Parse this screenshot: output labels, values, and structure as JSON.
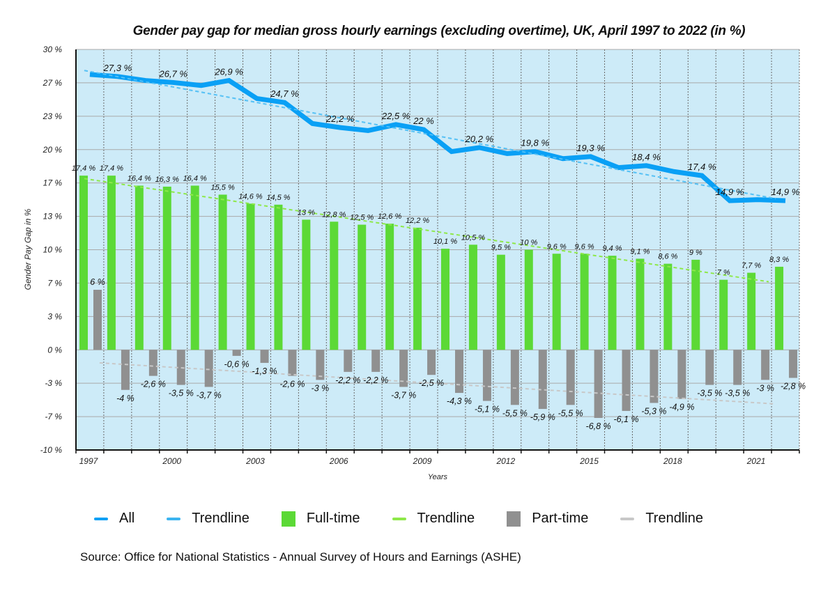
{
  "chart_data": {
    "type": "bar",
    "title": "Gender pay gap for median gross hourly earnings (excluding overtime), UK, April 1997 to 2022 (in %)",
    "xlabel": "Years",
    "ylabel": "Gender Pay Gap in %",
    "ylim": [
      -10,
      30
    ],
    "y_ticks": [
      30,
      26.67,
      23.33,
      20,
      16.67,
      13.33,
      10,
      6.67,
      3.33,
      0,
      -3.33,
      -6.67,
      -10
    ],
    "y_tick_labels": [
      "30 %",
      "27 %",
      "23 %",
      "20 %",
      "17 %",
      "13 %",
      "10 %",
      "7 %",
      "3 %",
      "0 %",
      "-3 %",
      "-7 %",
      "-10 %"
    ],
    "grid": true,
    "categories": [
      "1997",
      "1998",
      "1999",
      "2000",
      "2001",
      "2002",
      "2003",
      "2004",
      "2005",
      "2006",
      "2007",
      "2008",
      "2009",
      "2010",
      "2011",
      "2012",
      "2013",
      "2014",
      "2015",
      "2016",
      "2017",
      "2018",
      "2019",
      "2020",
      "2021",
      "2022"
    ],
    "x_tick_labels": [
      "1997",
      "",
      "",
      "2000",
      "",
      "",
      "2003",
      "",
      "",
      "2006",
      "",
      "",
      "2009",
      "",
      "",
      "2012",
      "",
      "",
      "2015",
      "",
      "",
      "2018",
      "",
      "",
      "2021",
      ""
    ],
    "series": [
      {
        "name": "All",
        "type": "line",
        "color": "#0aa0f5",
        "values": [
          27.5,
          27.3,
          26.9,
          26.7,
          26.4,
          26.9,
          25.1,
          24.7,
          22.6,
          22.2,
          21.9,
          22.5,
          22.0,
          19.8,
          20.2,
          19.6,
          19.8,
          19.1,
          19.3,
          18.2,
          18.4,
          17.8,
          17.4,
          14.9,
          15.0,
          14.9
        ],
        "labels": [
          "",
          "27,3 %",
          "",
          "26,7 %",
          "",
          "26,9 %",
          "",
          "24,7 %",
          "",
          "22,2 %",
          "",
          "22,5 %",
          "22 %",
          "",
          "20,2 %",
          "",
          "19,8 %",
          "",
          "19,3 %",
          "",
          "18,4 %",
          "",
          "17,4 %",
          "14,9 %",
          "",
          "14,9 %"
        ]
      },
      {
        "name": "Trendline",
        "type": "trendline",
        "of": "All",
        "color": "#3cb4f0",
        "start": 27.9,
        "end": 15.1
      },
      {
        "name": "Full-time",
        "type": "bar",
        "color": "#5cd936",
        "values": [
          17.4,
          17.4,
          16.4,
          16.3,
          16.4,
          15.5,
          14.6,
          14.5,
          13.0,
          12.8,
          12.5,
          12.6,
          12.2,
          10.1,
          10.5,
          9.5,
          10.0,
          9.6,
          9.6,
          9.4,
          9.1,
          8.6,
          9.0,
          7.0,
          7.7,
          8.3
        ],
        "labels": [
          "17,4 %",
          "17,4 %",
          "16,4 %",
          "16,3 %",
          "16,4 %",
          "15,5 %",
          "14,6 %",
          "14,5 %",
          "13 %",
          "12,8 %",
          "12,5 %",
          "12,6 %",
          "12,2 %",
          "10,1 %",
          "10,5 %",
          "9,5 %",
          "10 %",
          "9,6 %",
          "9,6 %",
          "9,4 %",
          "9,1 %",
          "8,6 %",
          "9 %",
          "7 %",
          "7,7 %",
          "8,3 %"
        ]
      },
      {
        "name": "Trendline",
        "type": "trendline",
        "of": "Full-time",
        "color": "#8ee84a",
        "start": 17.1,
        "end": 6.8
      },
      {
        "name": "Part-time",
        "type": "bar",
        "color": "#909090",
        "values": [
          6.0,
          -4.0,
          -2.6,
          -3.5,
          -3.7,
          -0.6,
          -1.3,
          -2.6,
          -3.0,
          -2.2,
          -2.2,
          -3.7,
          -2.5,
          -4.3,
          -5.1,
          -5.5,
          -5.9,
          -5.5,
          -6.8,
          -6.1,
          -5.3,
          -4.9,
          -3.5,
          -3.5,
          -3.0,
          -2.8
        ],
        "labels": [
          "6 %",
          "-4 %",
          "-2,6 %",
          "-3,5 %",
          "-3,7 %",
          "-0,6 %",
          "-1,3 %",
          "-2,6 %",
          "-3 %",
          "-2,2 %",
          "-2,2 %",
          "-3,7 %",
          "-2,5 %",
          "-4,3 %",
          "-5,1 %",
          "-5,5 %",
          "-5,9 %",
          "-5,5 %",
          "-6,8 %",
          "-6,1 %",
          "-5,3 %",
          "-4,9 %",
          "-3,5 %",
          "-3,5 %",
          "-3 %",
          "-2,8 %"
        ]
      },
      {
        "name": "Trendline",
        "type": "trendline",
        "of": "Part-time",
        "color": "#c8c8c8",
        "start": -1.3,
        "end": -5.4
      }
    ],
    "legend": [
      "All",
      "Trendline",
      "Full-time",
      "Trendline",
      "Part-time",
      "Trendline"
    ],
    "legend_position": "bottom"
  },
  "legend": [
    {
      "label": "All",
      "kind": "line",
      "color": "#0aa0f5"
    },
    {
      "label": "Trendline",
      "kind": "line",
      "color": "#3cb4f0"
    },
    {
      "label": "Full-time",
      "kind": "box",
      "color": "#5cd936"
    },
    {
      "label": "Trendline",
      "kind": "line",
      "color": "#8ee84a"
    },
    {
      "label": "Part-time",
      "kind": "box",
      "color": "#909090"
    },
    {
      "label": "Trendline",
      "kind": "line",
      "color": "#c8c8c8"
    }
  ],
  "colors": {
    "plot_background": "#cdebf8",
    "gridline": "#a9a9a9"
  },
  "source": "Source: Office for National Statistics - Annual Survey of Hours and Earnings (ASHE)"
}
